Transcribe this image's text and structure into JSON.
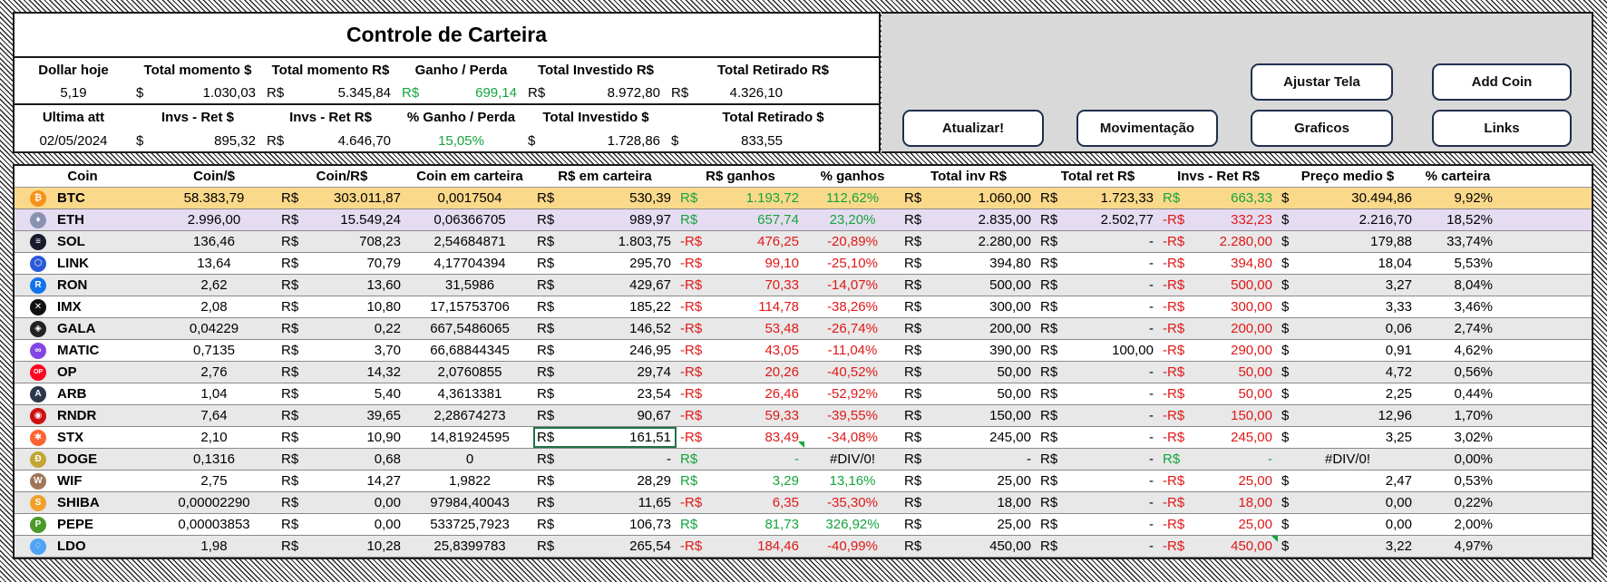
{
  "summary": {
    "title": "Controle de Carteira",
    "headers1": [
      "Dollar hoje",
      "Total momento $",
      "Total momento R$",
      "Ganho / Perda",
      "Total Investido R$",
      "Total Retirado R$"
    ],
    "row1": {
      "dollar": "5,19",
      "total_momento_usd_cur": "$",
      "total_momento_usd": "1.030,03",
      "total_momento_brl_cur": "R$",
      "total_momento_brl": "5.345,84",
      "ganho_cur": "R$",
      "ganho": "699,14",
      "investido_cur": "R$",
      "investido": "8.972,80",
      "retirado_cur": "R$",
      "retirado": "4.326,10"
    },
    "headers2": [
      "Ultima att",
      "Invs - Ret $",
      "Invs - Ret R$",
      "% Ganho / Perda",
      "Total Investido $",
      "Total Retirado $"
    ],
    "row2": {
      "date": "02/05/2024",
      "invs_usd_cur": "$",
      "invs_usd": "895,32",
      "invs_brl_cur": "R$",
      "invs_brl": "4.646,70",
      "pct": "15,05%",
      "inv_usd_cur": "$",
      "inv_usd": "1.728,86",
      "ret_usd_cur": "$",
      "ret_usd": "833,55"
    }
  },
  "buttons": {
    "ajustar": "Ajustar Tela",
    "add_coin": "Add Coin",
    "atualizar": "Atualizar!",
    "movimentacao": "Movimentação",
    "graficos": "Graficos",
    "links": "Links"
  },
  "table": {
    "headers": [
      "Coin",
      "Coin/$",
      "Coin/R$",
      "Coin em carteira",
      "R$ em carteira",
      "R$ ganhos",
      "% ganhos",
      "Total inv R$",
      "Total ret R$",
      "Invs - Ret R$",
      "Preço medio $",
      "% carteira"
    ],
    "currency_brl": "R$",
    "currency_usd": "$",
    "rows": [
      {
        "coin": "BTC",
        "icon": "bitcoin-icon",
        "icon_color": "#f7931a",
        "glyph": "₿",
        "usd": "58.383,79",
        "brl": "303.011,87",
        "qty": "0,0017504",
        "wallet": "530,39",
        "gain_cur": "R$",
        "gain": "1.193,72",
        "gain_pos": true,
        "pct": "112,62%",
        "inv": "1.060,00",
        "ret": "1.723,33",
        "diff_cur": "R$",
        "diff": "663,33",
        "diff_pos": true,
        "avg": "30.494,86",
        "share": "9,92%"
      },
      {
        "coin": "ETH",
        "icon": "ethereum-icon",
        "icon_color": "#8a92b2",
        "glyph": "♦",
        "usd": "2.996,00",
        "brl": "15.549,24",
        "qty": "0,06366705",
        "wallet": "989,97",
        "gain_cur": "R$",
        "gain": "657,74",
        "gain_pos": true,
        "pct": "23,20%",
        "inv": "2.835,00",
        "ret": "2.502,77",
        "diff_cur": "-R$",
        "diff": "332,23",
        "diff_pos": false,
        "avg": "2.216,70",
        "share": "18,52%"
      },
      {
        "coin": "SOL",
        "icon": "solana-icon",
        "icon_color": "#1a1a2e",
        "glyph": "≡",
        "usd": "136,46",
        "brl": "708,23",
        "qty": "2,54684871",
        "wallet": "1.803,75",
        "gain_cur": "-R$",
        "gain": "476,25",
        "gain_pos": false,
        "pct": "-20,89%",
        "inv": "2.280,00",
        "ret": "-",
        "diff_cur": "-R$",
        "diff": "2.280,00",
        "diff_pos": false,
        "avg": "179,88",
        "share": "33,74%"
      },
      {
        "coin": "LINK",
        "icon": "chainlink-icon",
        "icon_color": "#2a5ada",
        "glyph": "⬡",
        "usd": "13,64",
        "brl": "70,79",
        "qty": "4,17704394",
        "wallet": "295,70",
        "gain_cur": "-R$",
        "gain": "99,10",
        "gain_pos": false,
        "pct": "-25,10%",
        "inv": "394,80",
        "ret": "-",
        "diff_cur": "-R$",
        "diff": "394,80",
        "diff_pos": false,
        "avg": "18,04",
        "share": "5,53%"
      },
      {
        "coin": "RON",
        "icon": "ronin-icon",
        "icon_color": "#1273ea",
        "glyph": "R",
        "usd": "2,62",
        "brl": "13,60",
        "qty": "31,5986",
        "wallet": "429,67",
        "gain_cur": "-R$",
        "gain": "70,33",
        "gain_pos": false,
        "pct": "-14,07%",
        "inv": "500,00",
        "ret": "-",
        "diff_cur": "-R$",
        "diff": "500,00",
        "diff_pos": false,
        "avg": "3,27",
        "share": "8,04%"
      },
      {
        "coin": "IMX",
        "icon": "immutable-icon",
        "icon_color": "#111111",
        "glyph": "✕",
        "usd": "2,08",
        "brl": "10,80",
        "qty": "17,15753706",
        "wallet": "185,22",
        "gain_cur": "-R$",
        "gain": "114,78",
        "gain_pos": false,
        "pct": "-38,26%",
        "inv": "300,00",
        "ret": "-",
        "diff_cur": "-R$",
        "diff": "300,00",
        "diff_pos": false,
        "avg": "3,33",
        "share": "3,46%"
      },
      {
        "coin": "GALA",
        "icon": "gala-icon",
        "icon_color": "#222222",
        "glyph": "◈",
        "usd": "0,04229",
        "brl": "0,22",
        "qty": "667,5486065",
        "wallet": "146,52",
        "gain_cur": "-R$",
        "gain": "53,48",
        "gain_pos": false,
        "pct": "-26,74%",
        "inv": "200,00",
        "ret": "-",
        "diff_cur": "-R$",
        "diff": "200,00",
        "diff_pos": false,
        "avg": "0,06",
        "share": "2,74%"
      },
      {
        "coin": "MATIC",
        "icon": "polygon-icon",
        "icon_color": "#8247e5",
        "glyph": "∞",
        "usd": "0,7135",
        "brl": "3,70",
        "qty": "66,68844345",
        "wallet": "246,95",
        "gain_cur": "-R$",
        "gain": "43,05",
        "gain_pos": false,
        "pct": "-11,04%",
        "inv": "390,00",
        "ret": "100,00",
        "diff_cur": "-R$",
        "diff": "290,00",
        "diff_pos": false,
        "avg": "0,91",
        "share": "4,62%"
      },
      {
        "coin": "OP",
        "icon": "optimism-icon",
        "icon_color": "#ff0420",
        "glyph": "OP",
        "usd": "2,76",
        "brl": "14,32",
        "qty": "2,0760855",
        "wallet": "29,74",
        "gain_cur": "-R$",
        "gain": "20,26",
        "gain_pos": false,
        "pct": "-40,52%",
        "inv": "50,00",
        "ret": "-",
        "diff_cur": "-R$",
        "diff": "50,00",
        "diff_pos": false,
        "avg": "4,72",
        "share": "0,56%"
      },
      {
        "coin": "ARB",
        "icon": "arbitrum-icon",
        "icon_color": "#2d374b",
        "glyph": "A",
        "usd": "1,04",
        "brl": "5,40",
        "qty": "4,3613381",
        "wallet": "23,54",
        "gain_cur": "-R$",
        "gain": "26,46",
        "gain_pos": false,
        "pct": "-52,92%",
        "inv": "50,00",
        "ret": "-",
        "diff_cur": "-R$",
        "diff": "50,00",
        "diff_pos": false,
        "avg": "2,25",
        "share": "0,44%"
      },
      {
        "coin": "RNDR",
        "icon": "render-icon",
        "icon_color": "#cf1011",
        "glyph": "◉",
        "usd": "7,64",
        "brl": "39,65",
        "qty": "2,28674273",
        "wallet": "90,67",
        "gain_cur": "-R$",
        "gain": "59,33",
        "gain_pos": false,
        "pct": "-39,55%",
        "inv": "150,00",
        "ret": "-",
        "diff_cur": "-R$",
        "diff": "150,00",
        "diff_pos": false,
        "avg": "12,96",
        "share": "1,70%"
      },
      {
        "coin": "STX",
        "icon": "stacks-icon",
        "icon_color": "#fc6432",
        "glyph": "✱",
        "usd": "2,10",
        "brl": "10,90",
        "qty": "14,81924595",
        "wallet": "161,51",
        "gain_cur": "-R$",
        "gain": "83,49",
        "gain_pos": false,
        "pct": "-34,08%",
        "inv": "245,00",
        "ret": "-",
        "diff_cur": "-R$",
        "diff": "245,00",
        "diff_pos": false,
        "avg": "3,25",
        "share": "3,02%"
      },
      {
        "coin": "DOGE",
        "icon": "dogecoin-icon",
        "icon_color": "#c2a633",
        "glyph": "Ð",
        "usd": "0,1316",
        "brl": "0,68",
        "qty": "0",
        "wallet": "-",
        "gain_cur": "R$",
        "gain": "-",
        "gain_pos": true,
        "pct": "#DIV/0!",
        "inv": "-",
        "ret": "-",
        "diff_cur": "R$",
        "diff": "-",
        "diff_pos": true,
        "avg": "#DIV/0!",
        "share": "0,00%"
      },
      {
        "coin": "WIF",
        "icon": "dogwifhat-icon",
        "icon_color": "#a0765a",
        "glyph": "W",
        "usd": "2,75",
        "brl": "14,27",
        "qty": "1,9822",
        "wallet": "28,29",
        "gain_cur": "R$",
        "gain": "3,29",
        "gain_pos": true,
        "pct": "13,16%",
        "inv": "25,00",
        "ret": "-",
        "diff_cur": "-R$",
        "diff": "25,00",
        "diff_pos": false,
        "avg": "2,47",
        "share": "0,53%"
      },
      {
        "coin": "SHIBA",
        "icon": "shiba-icon",
        "icon_color": "#f0a12b",
        "glyph": "S",
        "usd": "0,00002290",
        "brl": "0,00",
        "qty": "97984,40043",
        "wallet": "11,65",
        "gain_cur": "-R$",
        "gain": "6,35",
        "gain_pos": false,
        "pct": "-35,30%",
        "inv": "18,00",
        "ret": "-",
        "diff_cur": "-R$",
        "diff": "18,00",
        "diff_pos": false,
        "avg": "0,00",
        "share": "0,22%"
      },
      {
        "coin": "PEPE",
        "icon": "pepe-icon",
        "icon_color": "#4c9a2a",
        "glyph": "P",
        "usd": "0,00003853",
        "brl": "0,00",
        "qty": "533725,7923",
        "wallet": "106,73",
        "gain_cur": "R$",
        "gain": "81,73",
        "gain_pos": true,
        "pct": "326,92%",
        "inv": "25,00",
        "ret": "-",
        "diff_cur": "-R$",
        "diff": "25,00",
        "diff_pos": false,
        "avg": "0,00",
        "share": "2,00%"
      },
      {
        "coin": "LDO",
        "icon": "lido-icon",
        "icon_color": "#4fa3f5",
        "glyph": "♢",
        "usd": "1,98",
        "brl": "10,28",
        "qty": "25,8399783",
        "wallet": "265,54",
        "gain_cur": "-R$",
        "gain": "184,46",
        "gain_pos": false,
        "pct": "-40,99%",
        "inv": "450,00",
        "ret": "-",
        "diff_cur": "-R$",
        "diff": "450,00",
        "diff_pos": false,
        "avg": "3,22",
        "share": "4,97%"
      }
    ]
  }
}
